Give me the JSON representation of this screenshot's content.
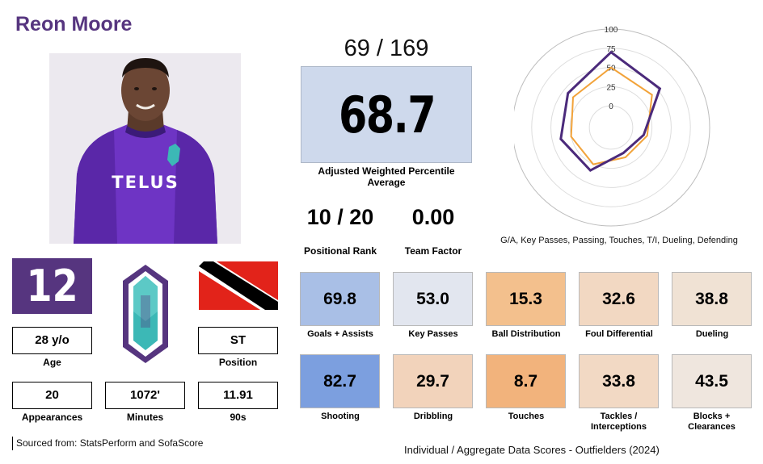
{
  "player": {
    "name": "Reon Moore",
    "jersey_number": "12",
    "age": "28 y/o",
    "age_label": "Age",
    "position": "ST",
    "position_label": "Position",
    "appearances": "20",
    "appearances_label": "Appearances",
    "minutes": "1072'",
    "minutes_label": "Minutes",
    "nineties": "11.91",
    "nineties_label": "90s",
    "shirt_sponsor": "TELUS"
  },
  "rank": {
    "overall": "69 / 169",
    "adjusted_weighted_percentile": "68.7",
    "adjusted_weighted_percentile_label": "Adjusted Weighted Percentile Average",
    "positional_rank": "10 / 20",
    "positional_rank_label": "Positional Rank",
    "team_factor": "0.00",
    "team_factor_label": "Team Factor"
  },
  "radar": {
    "caption": "G/A, Key Passes, Passing, Touches, T/I, Dueling, Defending",
    "ticks": [
      "0",
      "25",
      "50",
      "75",
      "100"
    ],
    "axes": [
      "G/A",
      "Key Passes",
      "Passing",
      "Touches",
      "T/I",
      "Dueling",
      "Defending"
    ],
    "player_values": [
      69.8,
      53.0,
      15.3,
      8.7,
      33.8,
      38.8,
      43.5
    ],
    "average_values": [
      50,
      40,
      20,
      15,
      25,
      25,
      35
    ],
    "player_color": "#4b2a7b",
    "average_color": "#f2a33a"
  },
  "tiles": [
    {
      "value": "69.8",
      "label": "Goals + Assists",
      "color": "#a9bfe6"
    },
    {
      "value": "53.0",
      "label": "Key Passes",
      "color": "#e2e6ef"
    },
    {
      "value": "15.3",
      "label": "Ball Distribution",
      "color": "#f3c08d"
    },
    {
      "value": "32.6",
      "label": "Foul Differential",
      "color": "#f2d8c2"
    },
    {
      "value": "38.8",
      "label": "Dueling",
      "color": "#f0e2d4"
    },
    {
      "value": "82.7",
      "label": "Shooting",
      "color": "#7c9fdf"
    },
    {
      "value": "29.7",
      "label": "Dribbling",
      "color": "#f2d3bb"
    },
    {
      "value": "8.7",
      "label": "Touches",
      "color": "#f2b37c"
    },
    {
      "value": "33.8",
      "label": "Tackles / Interceptions",
      "color": "#f2d9c4"
    },
    {
      "value": "43.5",
      "label": "Blocks + Clearances",
      "color": "#efe6de"
    }
  ],
  "footer": {
    "source": "Sourced from: StatsPerform and SofaScore",
    "title": "Individual / Aggregate Data Scores - Outfielders (2024)"
  },
  "colors": {
    "brand_purple": "#56357f",
    "logo_teal": "#3cb8b6",
    "flag_red": "#e2231a"
  }
}
